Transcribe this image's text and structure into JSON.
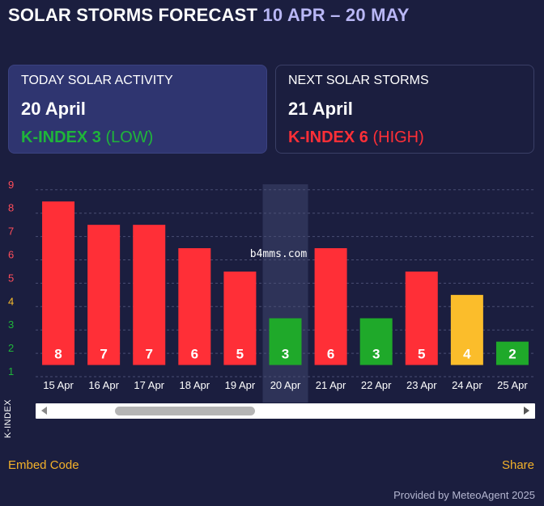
{
  "header": {
    "title": "SOLAR STORMS FORECAST",
    "range": "10 APR – 20 MAY"
  },
  "today_card": {
    "label": "TODAY SOLAR ACTIVITY",
    "date": "20 April",
    "kindex": "K-INDEX 3",
    "level": "(LOW)"
  },
  "next_card": {
    "label": "NEXT SOLAR STORMS",
    "date": "21 April",
    "kindex": "K-INDEX 6",
    "level": "(HIGH)"
  },
  "colors": {
    "high": "#ff2f37",
    "moderate": "#fbbd2b",
    "low": "#1fa92a"
  },
  "chart_data": {
    "type": "bar",
    "ylabel": "K-INDEX",
    "yticks": [
      1,
      2,
      3,
      4,
      5,
      6,
      7,
      8,
      9
    ],
    "ytick_colors": [
      "#1fb53a",
      "#1fb53a",
      "#1fb53a",
      "#fbbd2b",
      "#ff4d5a",
      "#ff4d5a",
      "#ff4d5a",
      "#ff4d5a",
      "#ff4d5a"
    ],
    "ylim": [
      1,
      9
    ],
    "categories": [
      "15 Apr",
      "16 Apr",
      "17 Apr",
      "18 Apr",
      "19 Apr",
      "20 Apr",
      "21 Apr",
      "22 Apr",
      "23 Apr",
      "24 Apr",
      "25 Apr"
    ],
    "values": [
      8,
      7,
      7,
      6,
      5,
      3,
      6,
      3,
      5,
      4,
      2
    ],
    "bar_colors": [
      "#ff2f37",
      "#ff2f37",
      "#ff2f37",
      "#ff2f37",
      "#ff2f37",
      "#1fa92a",
      "#ff2f37",
      "#1fa92a",
      "#ff2f37",
      "#fbbd2b",
      "#1fa92a"
    ],
    "highlight_category": "20 Apr",
    "grid": true
  },
  "watermark": "b4mms.com",
  "footer": {
    "embed": "Embed Code",
    "share": "Share",
    "provided": "Provided by MeteoAgent 2025"
  }
}
